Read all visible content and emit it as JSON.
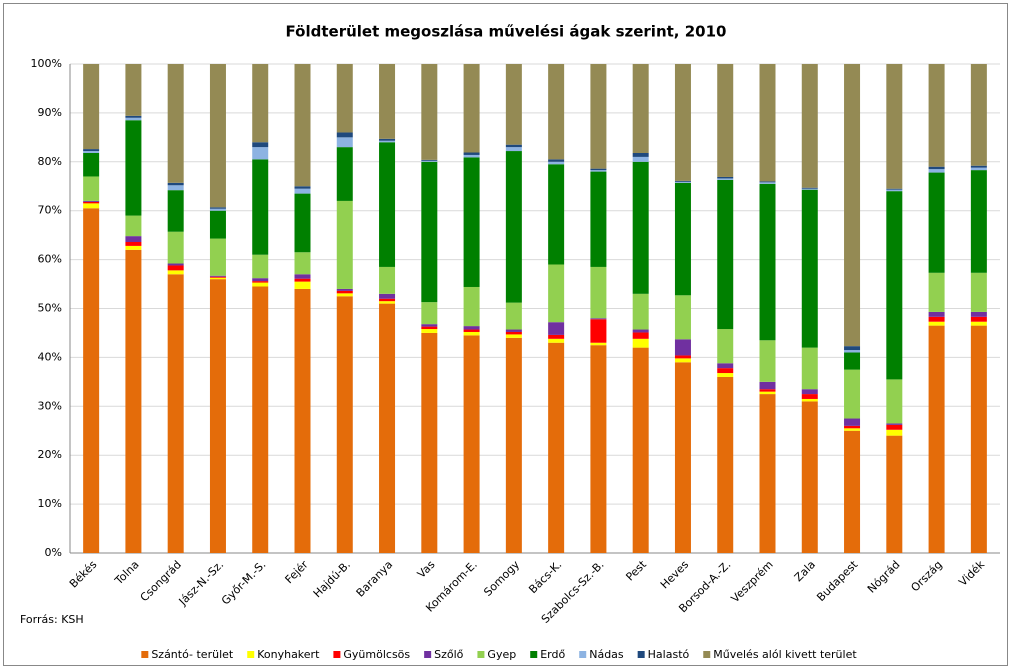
{
  "chart_data": {
    "type": "stacked_bar",
    "title": "Földterület megoszlása művelési ágak szerint, 2010",
    "source": "Forrás: KSH",
    "categories": [
      "Békés",
      "Tolna",
      "Csongrád",
      "Jász-N.-Sz.",
      "Győr-M.-S.",
      "Fejér",
      "Hajdú-B.",
      "Baranya",
      "Vas",
      "Komárom-E.",
      "Somogy",
      "Bács-K.",
      "Szabolcs-Sz.-B.",
      "Pest",
      "Heves",
      "Borsod-A.-Z.",
      "Veszprém",
      "Zala",
      "Budapest",
      "Nógrád",
      "Ország",
      "Vidék"
    ],
    "series": [
      {
        "name": "Szántó- terület",
        "color": "#e46c0a",
        "values": [
          70.5,
          62,
          57,
          56,
          54.5,
          54,
          52.5,
          51,
          45,
          44.5,
          44,
          43,
          42.5,
          42,
          39,
          36,
          32.5,
          31,
          25,
          24,
          46.5,
          46.5
        ]
      },
      {
        "name": "Konyhakert",
        "color": "#ffff00",
        "values": [
          1,
          0.8,
          0.8,
          0.3,
          0.8,
          1.5,
          0.6,
          0.5,
          0.8,
          0.7,
          0.7,
          0.8,
          0.5,
          1.8,
          0.8,
          0.8,
          0.5,
          0.5,
          0.5,
          1.2,
          0.8,
          0.8
        ]
      },
      {
        "name": "Gyümölcsös",
        "color": "#ff0000",
        "values": [
          0.3,
          0.8,
          1,
          0.2,
          0.3,
          0.6,
          0.5,
          0.5,
          0.5,
          0.5,
          0.5,
          0.8,
          4.8,
          1.3,
          0.6,
          1,
          0.5,
          1,
          0.5,
          1,
          1,
          1
        ]
      },
      {
        "name": "Szőlő",
        "color": "#7030a0",
        "values": [
          0.2,
          1.2,
          0.4,
          0.2,
          0.6,
          0.9,
          0.4,
          1,
          0.5,
          0.7,
          0.5,
          2.6,
          0.2,
          0.6,
          3.3,
          1,
          1.5,
          1,
          1.5,
          0.3,
          1,
          1
        ]
      },
      {
        "name": "Gyep",
        "color": "#92d050",
        "values": [
          5,
          4.2,
          6.5,
          7.6,
          4.8,
          4.5,
          18,
          5.5,
          4.5,
          8,
          5.5,
          11.8,
          10.5,
          7.3,
          9,
          7,
          8.5,
          8.5,
          10,
          9,
          8,
          8
        ]
      },
      {
        "name": "Erdő",
        "color": "#008000",
        "values": [
          4.8,
          19.5,
          8.5,
          5.7,
          19.5,
          12,
          11,
          25.5,
          28.7,
          26.5,
          31,
          20.5,
          19.5,
          27,
          23,
          30.5,
          32,
          32.3,
          3.5,
          38.5,
          20.5,
          21
        ]
      },
      {
        "name": "Nádas",
        "color": "#8db3e2",
        "values": [
          0.4,
          0.5,
          1,
          0.4,
          2.5,
          1,
          2,
          0.3,
          0.2,
          0.5,
          0.8,
          0.5,
          0.3,
          1,
          0.2,
          0.3,
          0.3,
          0.2,
          0.5,
          0.3,
          0.7,
          0.5
        ]
      },
      {
        "name": "Halastó",
        "color": "#1f497d",
        "values": [
          0.4,
          0.4,
          0.5,
          0.3,
          1,
          0.5,
          1,
          0.4,
          0.2,
          0.5,
          0.5,
          0.5,
          0.3,
          0.8,
          0.2,
          0.3,
          0.2,
          0.2,
          0.8,
          0.2,
          0.5,
          0.4
        ]
      },
      {
        "name": "Művelés alól kivett terület",
        "color": "#948a54",
        "values": [
          17.4,
          10.6,
          24.3,
          29.3,
          16,
          25,
          14,
          15.3,
          19.6,
          18.1,
          16.5,
          19.5,
          21.4,
          18.2,
          23.9,
          23.1,
          24,
          25.3,
          57.7,
          25.5,
          21,
          20.8
        ]
      }
    ],
    "ylim": [
      0,
      100
    ],
    "yticks": [
      {
        "value": 0,
        "label": "0%"
      },
      {
        "value": 10,
        "label": "10%"
      },
      {
        "value": 20,
        "label": "20%"
      },
      {
        "value": 30,
        "label": "30%"
      },
      {
        "value": 40,
        "label": "40%"
      },
      {
        "value": 50,
        "label": "50%"
      },
      {
        "value": 60,
        "label": "60%"
      },
      {
        "value": 70,
        "label": "70%"
      },
      {
        "value": 80,
        "label": "80%"
      },
      {
        "value": 90,
        "label": "90%"
      },
      {
        "value": 100,
        "label": "100%"
      }
    ],
    "grid": true
  }
}
